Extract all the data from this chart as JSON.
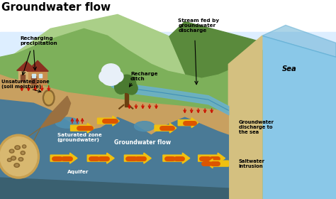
{
  "title": "Groundwater flow",
  "title_fontsize": 11,
  "labels": {
    "recharging": "Recharging\nprecipitation",
    "unsaturated": "Unsaturated zone\n(soil moisture)",
    "recharge_ditch": "Recharge\nditch",
    "stream_fed": "Stream fed by\ngroundwater\ndischarge",
    "sea": "Sea",
    "saturated": "Saturated zone\n(groundwater)",
    "gw_flow": "Groundwater flow",
    "aquifer": "Aquifer",
    "gw_discharge": "Groundwater\ndischarge to\nthe sea",
    "saltwater": "Saltwater\nintrusion"
  },
  "colors": {
    "white_bg": "#ffffff",
    "sky": "#ddeeff",
    "hill_light": "#aacf88",
    "hill_mid": "#7db05a",
    "hill_dark": "#5a8a3c",
    "ground_top": "#c8a060",
    "ground_dark": "#9a7040",
    "saturated": "#4a7a96",
    "sat_dark": "#3a6070",
    "sea_light": "#8ac8e8",
    "sea_dark": "#5aaad0",
    "beach": "#d4c080",
    "river": "#6ab0d0",
    "yellow": "#f0c010",
    "orange_red": "#dd5500",
    "red": "#cc1100",
    "rock_tan": "#c8a050",
    "rock_dark": "#8a6830",
    "house_wall": "#d4a060",
    "house_roof": "#8b3020",
    "tree_trunk": "#6b4010",
    "tree_green": "#4a7a30",
    "cloud_white": "#e8f0f8",
    "blue_pool": "#5090b0"
  }
}
